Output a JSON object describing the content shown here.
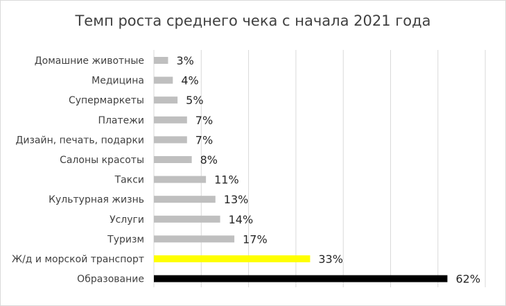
{
  "chart_data": {
    "type": "bar",
    "orientation": "horizontal",
    "title": "Темп роста среднего чека с начала 2021 года",
    "xlabel": "",
    "ylabel": "",
    "xlim": [
      0,
      70
    ],
    "grid": "vertical",
    "legend": "none",
    "categories": [
      "Домашние животные",
      "Медицина",
      "Супермаркеты",
      "Платежи",
      "Дизайн, печать, подарки",
      "Салоны красоты",
      "Такси",
      "Культурная жизнь",
      "Услуги",
      "Туризм",
      "Ж/д и морской транспорт",
      "Образование"
    ],
    "values": [
      3,
      4,
      5,
      7,
      7,
      8,
      11,
      13,
      14,
      17,
      33,
      62
    ],
    "value_labels": [
      "3%",
      "4%",
      "5%",
      "7%",
      "7%",
      "8%",
      "11%",
      "13%",
      "14%",
      "17%",
      "33%",
      "62%"
    ],
    "colors": [
      "#bfbfbf",
      "#bfbfbf",
      "#bfbfbf",
      "#bfbfbf",
      "#bfbfbf",
      "#bfbfbf",
      "#bfbfbf",
      "#bfbfbf",
      "#bfbfbf",
      "#bfbfbf",
      "#ffff00",
      "#000000"
    ],
    "gridline_color": "#d9d9d9"
  }
}
